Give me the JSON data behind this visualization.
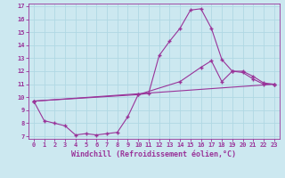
{
  "xlabel": "Windchill (Refroidissement éolien,°C)",
  "xlim": [
    -0.5,
    23.5
  ],
  "ylim": [
    6.8,
    17.2
  ],
  "xticks": [
    0,
    1,
    2,
    3,
    4,
    5,
    6,
    7,
    8,
    9,
    10,
    11,
    12,
    13,
    14,
    15,
    16,
    17,
    18,
    19,
    20,
    21,
    22,
    23
  ],
  "yticks": [
    7,
    8,
    9,
    10,
    11,
    12,
    13,
    14,
    15,
    16,
    17
  ],
  "line_color": "#993399",
  "bg_color": "#cce8f0",
  "grid_color": "#b0d8e4",
  "line1_x": [
    0,
    1,
    2,
    3,
    4,
    5,
    6,
    7,
    8,
    9,
    10,
    11,
    12,
    13,
    14,
    15,
    16,
    17,
    18,
    19,
    20,
    21,
    22,
    23
  ],
  "line1_y": [
    9.7,
    8.2,
    8.0,
    7.8,
    7.1,
    7.2,
    7.1,
    7.2,
    7.3,
    8.5,
    10.2,
    10.3,
    13.2,
    14.3,
    15.3,
    16.7,
    16.8,
    15.3,
    12.9,
    12.0,
    11.9,
    11.4,
    11.0,
    11.0
  ],
  "line2_x": [
    0,
    10,
    14,
    16,
    17,
    18,
    19,
    20,
    21,
    22,
    23
  ],
  "line2_y": [
    9.7,
    10.2,
    11.2,
    12.3,
    12.8,
    11.2,
    12.0,
    12.0,
    11.6,
    11.1,
    11.0
  ],
  "line3_x": [
    0,
    23
  ],
  "line3_y": [
    9.7,
    11.0
  ],
  "marker": "+",
  "markersize": 3.0,
  "linewidth": 0.8,
  "tick_fontsize": 5.0,
  "xlabel_fontsize": 6.0
}
